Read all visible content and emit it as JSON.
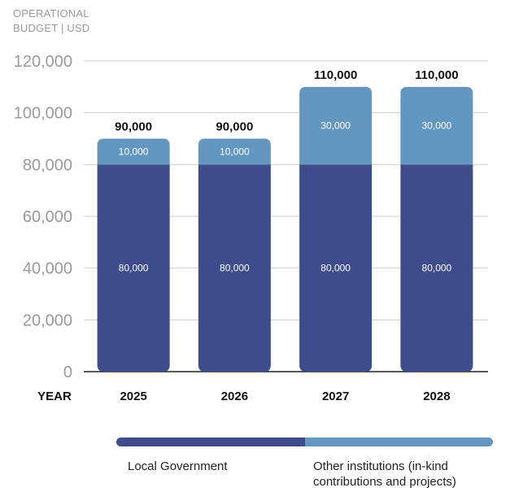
{
  "chart_data": {
    "type": "bar",
    "stacked": true,
    "title_lines": [
      "OPERATIONAL",
      "BUDGET | USD"
    ],
    "xlabel": "YEAR",
    "categories": [
      "2025",
      "2026",
      "2027",
      "2028"
    ],
    "ylim": [
      0,
      120000
    ],
    "yticks": [
      0,
      20000,
      40000,
      60000,
      80000,
      100000,
      120000
    ],
    "ytick_labels": [
      "0",
      "20,000",
      "40,000",
      "60,000",
      "80,000",
      "100,000",
      "120,000"
    ],
    "grid": true,
    "series": [
      {
        "name": "Local Government",
        "values": [
          80000,
          80000,
          80000,
          80000
        ],
        "labels": [
          "80,000",
          "80,000",
          "80,000",
          "80,000"
        ],
        "color": "#3f4c8c"
      },
      {
        "name": "Other institutions (in-kind contributions and projects)",
        "values": [
          10000,
          10000,
          30000,
          30000
        ],
        "labels": [
          "10,000",
          "10,000",
          "30,000",
          "30,000"
        ],
        "color": "#6397c0"
      }
    ],
    "totals": [
      "90,000",
      "90,000",
      "110,000",
      "110,000"
    ],
    "legend_position": "bottom"
  },
  "legend": {
    "items": [
      {
        "label": "Local Government",
        "color": "#3f4c8c"
      },
      {
        "label_lines": [
          "Other institutions (in-kind",
          "contributions and projects)"
        ],
        "color": "#6397c0"
      }
    ]
  }
}
